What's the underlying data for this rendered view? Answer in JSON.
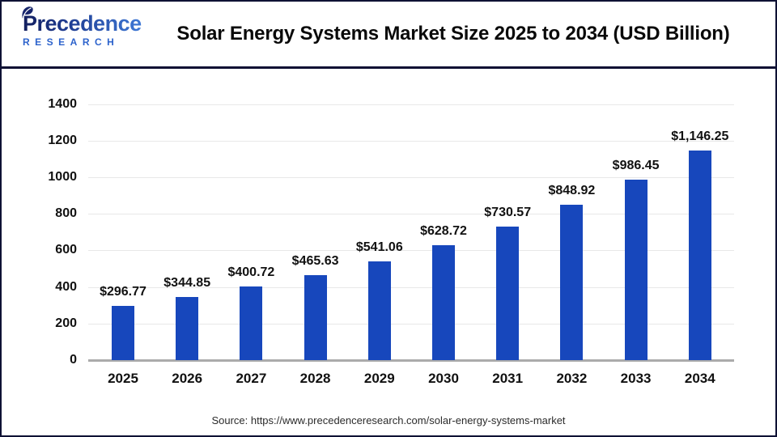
{
  "header": {
    "brand": "Precedence",
    "brand_sub": "RESEARCH",
    "title": "Solar Energy Systems Market Size 2025 to 2034 (USD Billion)"
  },
  "chart_data": {
    "type": "bar",
    "title": "Solar Energy Systems Market Size 2025 to 2034 (USD Billion)",
    "xlabel": "",
    "ylabel": "",
    "categories": [
      "2025",
      "2026",
      "2027",
      "2028",
      "2029",
      "2030",
      "2031",
      "2032",
      "2033",
      "2034"
    ],
    "values": [
      296.77,
      344.85,
      400.72,
      465.63,
      541.06,
      628.72,
      730.57,
      848.92,
      986.45,
      1146.25
    ],
    "value_labels": [
      "$296.77",
      "$344.85",
      "$400.72",
      "$465.63",
      "$541.06",
      "$628.72",
      "$730.57",
      "$848.92",
      "$986.45",
      "$1,146.25"
    ],
    "y_ticks": [
      0,
      200,
      400,
      600,
      800,
      1000,
      1200,
      1400
    ],
    "ylim": [
      0,
      1400
    ],
    "grid": true,
    "legend": false,
    "bar_color": "#1747bc",
    "unit": "USD Billion"
  },
  "footer": {
    "source": "Source: https://www.precedenceresearch.com/solar-energy-systems-market"
  }
}
